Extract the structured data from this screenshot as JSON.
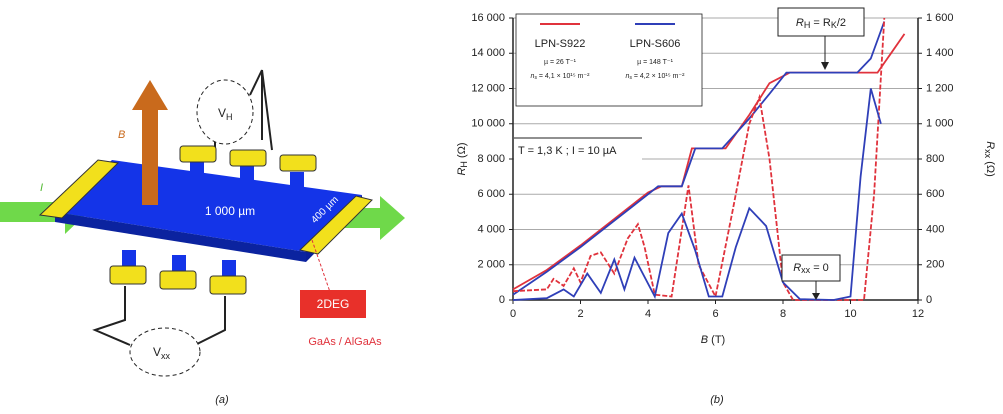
{
  "diagram": {
    "vh": {
      "symbol": "V",
      "subscript": "H"
    },
    "vxx": {
      "symbol": "V",
      "subscript": "xx"
    },
    "field": "B",
    "current": "I",
    "length": "1 000 µm",
    "width": "400 µm",
    "layer": "2DEG",
    "material": "GaAs / AlGaAs",
    "panel": "(a)"
  },
  "chart_data": {
    "type": "line",
    "panel": "(b)",
    "xlabel": {
      "symbol": "B",
      "unit": " (T)"
    },
    "ylabel": {
      "symbol": "R",
      "subscript": "H",
      "unit": " (Ω)"
    },
    "y2label": {
      "symbol": "R",
      "subscript": "xx",
      "unit": " (Ω)"
    },
    "xlim": [
      0,
      12
    ],
    "xticks": [
      0,
      2,
      4,
      6,
      8,
      10,
      12
    ],
    "ylim": [
      0,
      16000
    ],
    "yticks": [
      0,
      {
        "value": 2000,
        "label": "2 000"
      },
      {
        "value": 4000,
        "label": "4 000"
      },
      {
        "value": 6000,
        "label": "6 000"
      },
      {
        "value": 8000,
        "label": "8 000"
      },
      {
        "value": 10000,
        "label": "10 000"
      },
      {
        "value": 12000,
        "label": "12 000"
      },
      {
        "value": 14000,
        "label": "14 000"
      },
      {
        "value": 16000,
        "label": "16 000"
      }
    ],
    "y2lim": [
      0,
      1600
    ],
    "y2ticks": [
      0,
      200,
      400,
      600,
      800,
      {
        "value": 1000,
        "label": "1 000"
      },
      {
        "value": 1200,
        "label": "1 200"
      },
      {
        "value": 1400,
        "label": "1 400"
      },
      {
        "value": 1600,
        "label": "1 600"
      }
    ],
    "grid": true,
    "series": [
      {
        "name": "LPN-S922",
        "color": "#e0323c",
        "x": [
          0,
          1,
          2,
          3,
          4,
          4.4,
          5,
          5.3,
          6,
          6.3,
          7,
          7.6,
          8.2,
          10.8,
          11.2,
          11.6
        ],
        "values": [
          600,
          1700,
          3100,
          4600,
          6100,
          6450,
          6450,
          8600,
          8600,
          8600,
          10500,
          12300,
          12900,
          12900,
          14000,
          15100
        ]
      },
      {
        "name": "LPN-S606",
        "color": "#2f3fb8",
        "x": [
          0,
          1,
          2,
          3,
          4,
          4.3,
          5,
          5.4,
          6.2,
          7,
          7.6,
          8.1,
          10.2,
          10.6,
          11
        ],
        "values": [
          300,
          1600,
          3000,
          4500,
          6000,
          6450,
          6450,
          8600,
          8600,
          10300,
          11700,
          12900,
          12900,
          13700,
          15800
        ]
      },
      {
        "color": "#e0323c",
        "axis": "y2",
        "x": [
          0,
          1,
          1.2,
          1.5,
          1.8,
          2,
          2.3,
          2.6,
          3,
          3.4,
          3.7,
          3.9,
          4.2,
          4.7,
          5,
          5.2,
          5.5,
          6,
          6.5,
          7,
          7.3,
          7.6,
          8,
          8.3,
          10.4,
          10.7,
          11
        ],
        "values": [
          50,
          60,
          120,
          80,
          180,
          100,
          250,
          270,
          150,
          350,
          430,
          300,
          30,
          20,
          400,
          650,
          200,
          20,
          500,
          1000,
          1150,
          800,
          100,
          0,
          0,
          600,
          1600
        ]
      },
      {
        "color": "#2f3fb8",
        "axis": "y2",
        "x": [
          0,
          1,
          1.5,
          1.8,
          2.2,
          2.6,
          3,
          3.3,
          3.6,
          4.2,
          4.6,
          5,
          5.4,
          5.8,
          6.2,
          6.6,
          7,
          7.5,
          8,
          8.5,
          9.5,
          10,
          10.3,
          10.6,
          10.9
        ],
        "values": [
          0,
          10,
          60,
          20,
          150,
          40,
          230,
          60,
          240,
          20,
          380,
          490,
          280,
          20,
          20,
          300,
          520,
          420,
          100,
          5,
          0,
          20,
          700,
          1200,
          1000
        ]
      }
    ],
    "legend_notes": [
      {
        "mobility": "µ = 26 T⁻¹",
        "density": {
          "symbol": "n",
          "subscript": "s",
          "rest": " = 4,1 × 10¹⁵ m⁻²"
        }
      },
      {
        "mobility": "µ = 148 T⁻¹",
        "density": {
          "symbol": "n",
          "subscript": "s",
          "rest": " = 4,2 × 10¹⁵ m⁻²"
        }
      }
    ],
    "conditions": "T = 1,3 K ; I = 10 µA",
    "plateau": {
      "lhs": "R",
      "lhs_sub": "H",
      "mid": " = R",
      "rhs_sub": "K",
      "rest": "/2"
    },
    "zero": {
      "symbol": "R",
      "subscript": "xx",
      "rest": " = 0"
    }
  }
}
